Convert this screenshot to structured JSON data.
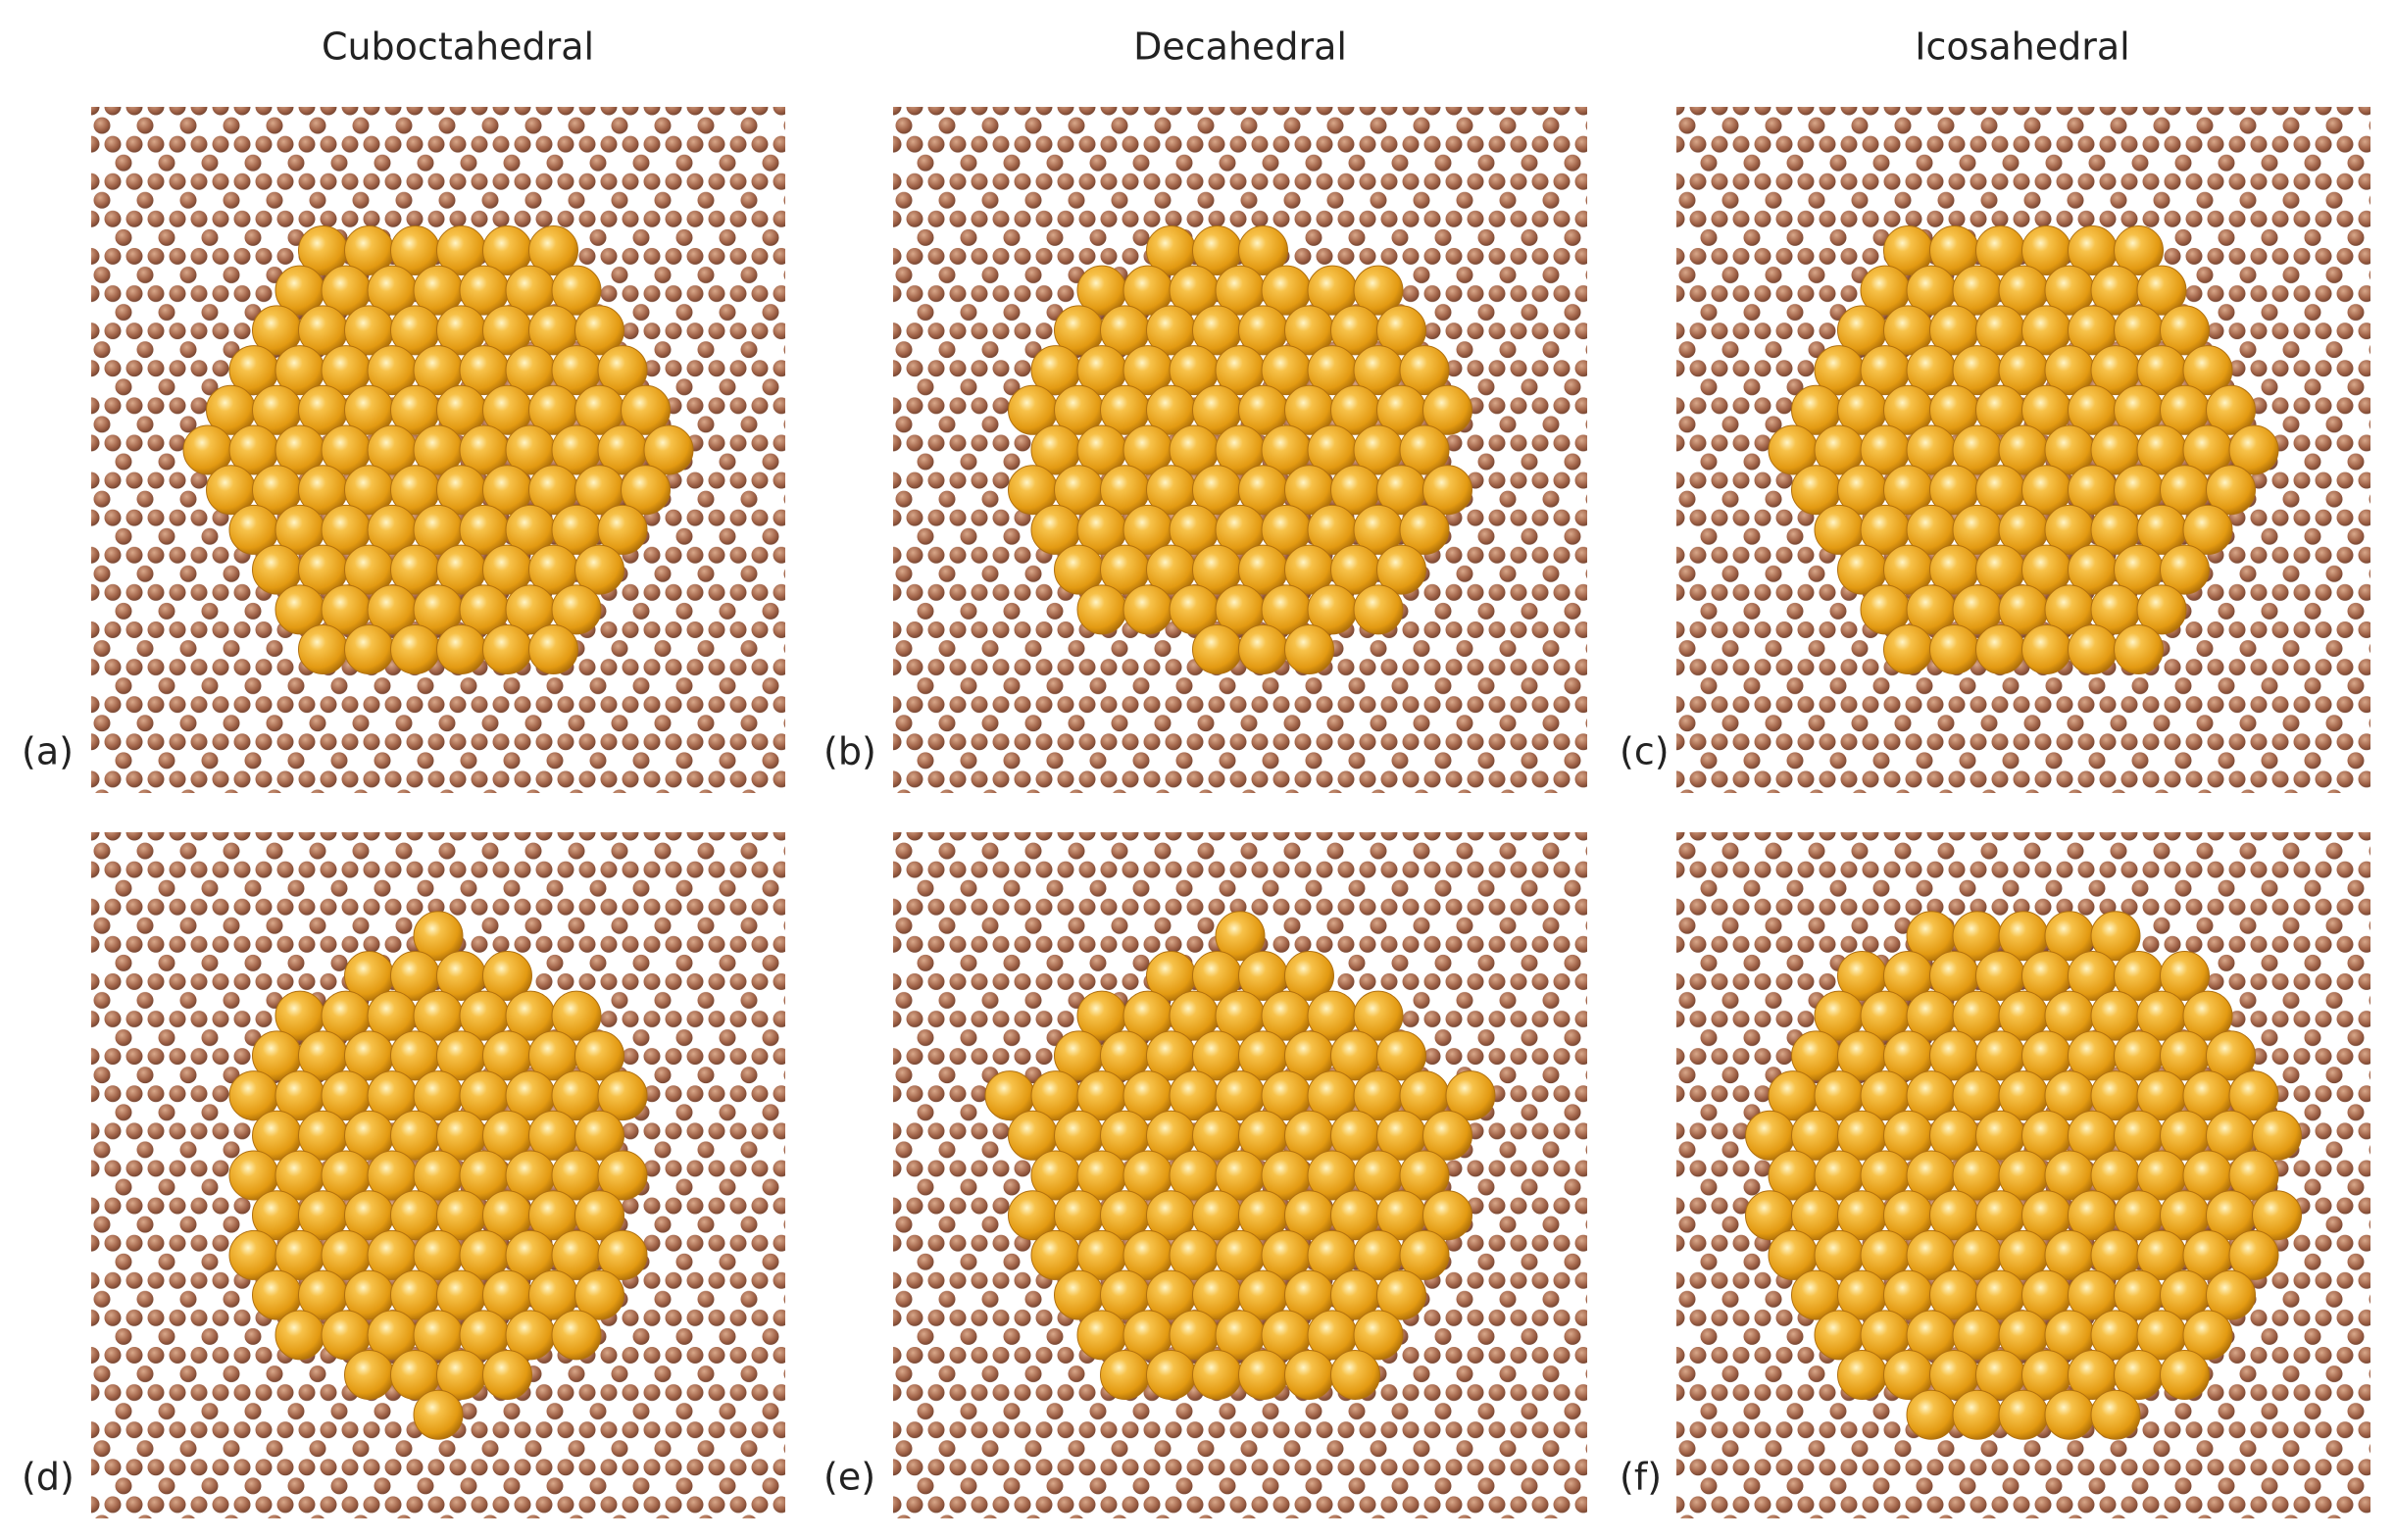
{
  "columns": [
    "Cuboctahedral",
    "Decahedral",
    "Icosahedral"
  ],
  "panels": [
    {
      "label": "(a)"
    },
    {
      "label": "(b)"
    },
    {
      "label": "(c)"
    },
    {
      "label": "(d)"
    },
    {
      "label": "(e)"
    },
    {
      "label": "(f)"
    }
  ]
}
